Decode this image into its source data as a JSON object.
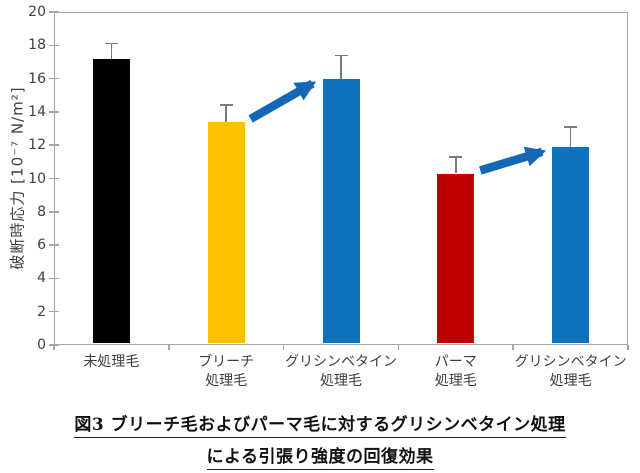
{
  "figure": {
    "caption_line1": "図3 ブリーチ毛およびパーマ毛に対するグリシンベタイン処理",
    "caption_line2": "による引張り強度の回復効果"
  },
  "chart_data": {
    "type": "bar",
    "title": "",
    "xlabel": "",
    "ylabel": "破断時応力 [10⁻⁷ N/m²]",
    "ylim": [
      0,
      20
    ],
    "yticks": [
      0,
      2,
      4,
      6,
      8,
      10,
      12,
      14,
      16,
      18,
      20
    ],
    "grid": false,
    "legend": false,
    "categories": [
      [
        "未処理毛"
      ],
      [
        "ブリーチ",
        "処理毛"
      ],
      [
        "グリシンベタイン",
        "処理毛"
      ],
      [
        "パーマ",
        "処理毛"
      ],
      [
        "グリシンベタイン",
        "処理毛"
      ]
    ],
    "values": [
      17.2,
      13.4,
      16.0,
      10.3,
      11.9
    ],
    "errors_plus": [
      0.9,
      1.0,
      1.4,
      1.0,
      1.2
    ],
    "bar_colors": [
      "#000000",
      "#FFC000",
      "#0E72BD",
      "#C00000",
      "#0E72BD"
    ],
    "annotations": [
      {
        "type": "arrow",
        "from_index": 1,
        "to_index": 2,
        "color": "#1467B5"
      },
      {
        "type": "arrow",
        "from_index": 3,
        "to_index": 4,
        "color": "#1467B5"
      }
    ]
  },
  "colors": {
    "background": "#ffffff",
    "axis": "#a6a6a6",
    "error_bar": "#7a7a7a",
    "tick_text": "#3f3f3f",
    "caption_text": "#111111"
  }
}
